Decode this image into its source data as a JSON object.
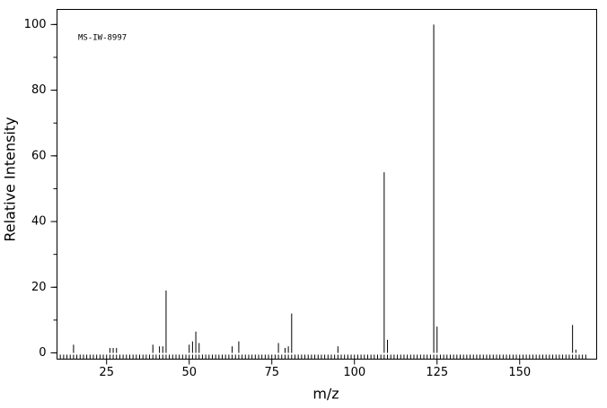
{
  "chart_data": {
    "type": "bar",
    "annotation": "MS-IW-8997",
    "x_label": "m/z",
    "y_label": "Relative Intensity",
    "x": [
      15,
      26,
      27,
      28,
      39,
      41,
      42,
      43,
      50,
      51,
      52,
      53,
      63,
      65,
      77,
      79,
      80,
      81,
      95,
      109,
      110,
      124,
      125,
      166,
      167
    ],
    "values": [
      2.5,
      1.5,
      1.5,
      1.5,
      2.5,
      2,
      2,
      19,
      2.5,
      3.5,
      6.5,
      3,
      2,
      3.5,
      3,
      1.5,
      2,
      12,
      2,
      55,
      4,
      100,
      8,
      8.5,
      1
    ],
    "color": "#000000",
    "xlim": [
      10,
      173.3
    ],
    "xticks": [
      25,
      50,
      75,
      100,
      125,
      150
    ],
    "ylim": [
      -1.9,
      104.6
    ],
    "yticks": [
      0,
      20,
      40,
      60,
      80,
      100
    ],
    "grid": false
  }
}
